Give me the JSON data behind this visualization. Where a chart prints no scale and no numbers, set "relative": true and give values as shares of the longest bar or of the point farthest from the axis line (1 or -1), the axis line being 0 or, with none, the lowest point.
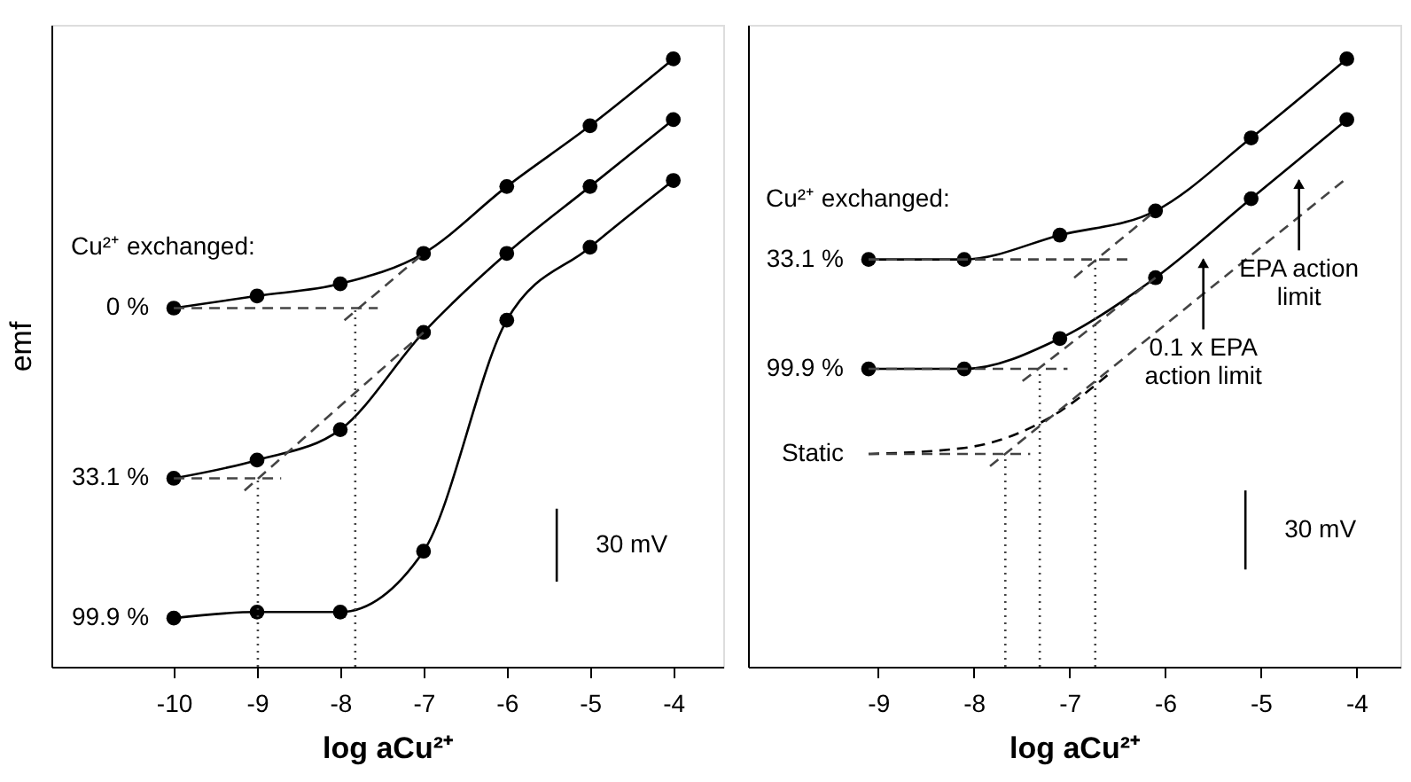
{
  "chart_data": [
    {
      "type": "line",
      "xlabel": "log aCu²⁺",
      "ylabel": "emf",
      "relative": true,
      "xlim": [
        -11.47,
        -3.4
      ],
      "xticks": [
        -10,
        -9,
        -8,
        -7,
        -6,
        -5,
        -4
      ],
      "marker": "circle",
      "legend": false,
      "grid": false,
      "annotations": [
        "Cu²⁺ exchanged:",
        "30 mV"
      ],
      "series": [
        {
          "name": "0 %",
          "color": "#000000",
          "x": [
            -10,
            -9,
            -8,
            -7,
            -6,
            -5,
            -4
          ],
          "values": [
            0.59,
            0.61,
            0.63,
            0.68,
            0.79,
            0.89,
            1.0
          ]
        },
        {
          "name": "33.1 %",
          "color": "#000000",
          "x": [
            -10,
            -9,
            -8,
            -7,
            -6,
            -5,
            -4
          ],
          "values": [
            0.31,
            0.34,
            0.39,
            0.55,
            0.68,
            0.79,
            0.9
          ]
        },
        {
          "name": "99.9 %",
          "color": "#000000",
          "x": [
            -10,
            -9,
            -8,
            -7,
            -6,
            -5,
            -4
          ],
          "values": [
            0.08,
            0.09,
            0.09,
            0.19,
            0.57,
            0.69,
            0.8
          ]
        },
        {
          "color": "#444444",
          "x": [
            -10,
            -7.55
          ],
          "values": [
            0.59,
            0.59
          ],
          "line_style": "dashed",
          "marker": "none"
        },
        {
          "color": "#444444",
          "x": [
            -7.95,
            -7
          ],
          "values": [
            0.57,
            0.68
          ],
          "line_style": "dashed",
          "marker": "none"
        },
        {
          "color": "#444444",
          "x": [
            -7.82,
            -7.82
          ],
          "values": [
            0,
            0.59
          ],
          "line_style": "dotted",
          "marker": "none"
        },
        {
          "color": "#444444",
          "x": [
            -10,
            -8.71
          ],
          "values": [
            0.31,
            0.31
          ],
          "line_style": "dashed",
          "marker": "none"
        },
        {
          "color": "#444444",
          "x": [
            -9.15,
            -7
          ],
          "values": [
            0.29,
            0.55
          ],
          "line_style": "dashed",
          "marker": "none"
        },
        {
          "color": "#444444",
          "x": [
            -8.99,
            -8.99
          ],
          "values": [
            0,
            0.31
          ],
          "line_style": "dotted",
          "marker": "none"
        },
        {
          "color": "#000000",
          "x": [
            -5.4,
            -5.4
          ],
          "values": [
            0.14,
            0.26
          ],
          "marker": "none"
        }
      ]
    },
    {
      "type": "line",
      "xlabel": "log aCu²⁺",
      "relative": true,
      "xlim": [
        -10.36,
        -3.54
      ],
      "xticks": [
        -9,
        -8,
        -7,
        -6,
        -5,
        -4
      ],
      "marker": "circle",
      "legend": false,
      "grid": false,
      "annotations": [
        "Cu²⁺ exchanged:",
        "30 mV",
        "0.1 x EPA\naction limit",
        "EPA action\nlimit"
      ],
      "series": [
        {
          "name": "33.1 %",
          "color": "#000000",
          "x": [
            -9.1,
            -8.1,
            -7.1,
            -6.1,
            -5.1,
            -4.1
          ],
          "values": [
            0.67,
            0.67,
            0.71,
            0.75,
            0.87,
            1.0
          ]
        },
        {
          "name": "99.9 %",
          "color": "#000000",
          "x": [
            -9.1,
            -8.1,
            -7.1,
            -6.1,
            -5.1,
            -4.1
          ],
          "values": [
            0.49,
            0.49,
            0.54,
            0.64,
            0.77,
            0.9
          ]
        },
        {
          "name": "Static",
          "color": "#000000",
          "x": [
            -9.1,
            -8.1,
            -7.6,
            -7.1,
            -6.6
          ],
          "values": [
            0.35,
            0.36,
            0.38,
            0.42,
            0.48
          ],
          "line_style": "dashed",
          "marker": "none"
        },
        {
          "color": "#444444",
          "x": [
            -9.1,
            -7.41
          ],
          "values": [
            0.35,
            0.35
          ],
          "line_style": "dashed",
          "marker": "none"
        },
        {
          "color": "#444444",
          "x": [
            -7.83,
            -4.13
          ],
          "values": [
            0.33,
            0.8
          ],
          "line_style": "dashed",
          "marker": "none"
        },
        {
          "color": "#444444",
          "x": [
            -9.1,
            -6.38
          ],
          "values": [
            0.67,
            0.67
          ],
          "line_style": "dashed",
          "marker": "none"
        },
        {
          "color": "#444444",
          "x": [
            -6.95,
            -6.1
          ],
          "values": [
            0.64,
            0.75
          ],
          "line_style": "dashed",
          "marker": "none"
        },
        {
          "color": "#444444",
          "x": [
            -6.73,
            -6.73
          ],
          "values": [
            0,
            0.67
          ],
          "line_style": "dotted",
          "marker": "none"
        },
        {
          "color": "#444444",
          "x": [
            -9.1,
            -7.02
          ],
          "values": [
            0.49,
            0.49
          ],
          "line_style": "dashed",
          "marker": "none"
        },
        {
          "color": "#444444",
          "x": [
            -7.49,
            -6.1
          ],
          "values": [
            0.47,
            0.64
          ],
          "line_style": "dashed",
          "marker": "none"
        },
        {
          "color": "#444444",
          "x": [
            -7.31,
            -7.31
          ],
          "values": [
            0,
            0.49
          ],
          "line_style": "dotted",
          "marker": "none"
        },
        {
          "color": "#444444",
          "x": [
            -7.67,
            -7.67
          ],
          "values": [
            0,
            0.35
          ],
          "line_style": "dotted",
          "marker": "none"
        },
        {
          "color": "#000000",
          "x": [
            -5.16,
            -5.16
          ],
          "values": [
            0.16,
            0.29
          ],
          "marker": "none"
        }
      ]
    }
  ]
}
